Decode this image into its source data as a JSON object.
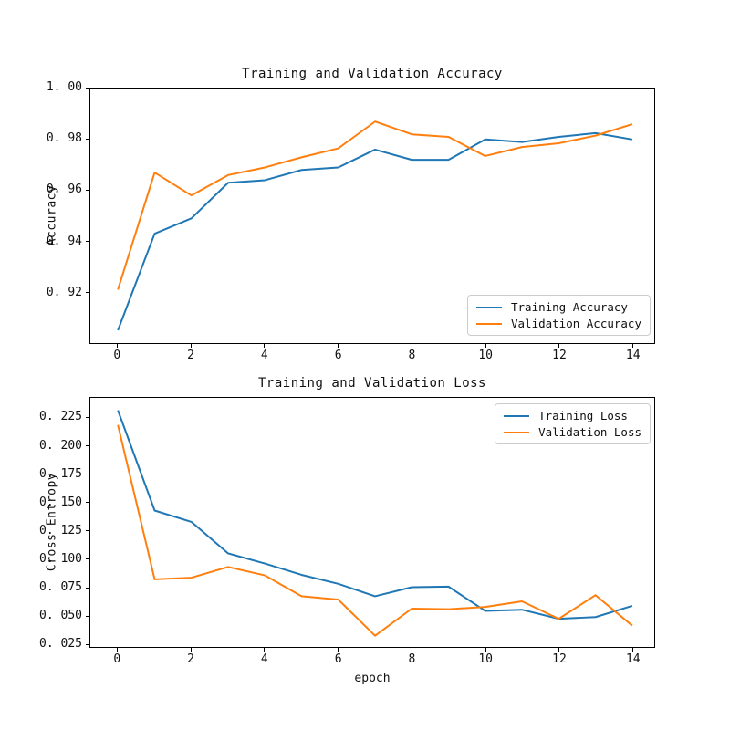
{
  "figure": {
    "background": "#ffffff",
    "text_color": "#111111",
    "accent_blue": "#1f77b4",
    "accent_orange": "#ff7f0e"
  },
  "chart_data": [
    {
      "type": "line",
      "title": "Training and Validation Accuracy",
      "xlabel": "",
      "ylabel": "Accuracy",
      "grid": false,
      "legend_position": "lower right",
      "x": [
        0,
        1,
        2,
        3,
        4,
        5,
        6,
        7,
        8,
        9,
        10,
        11,
        12,
        13,
        14
      ],
      "xlim": [
        -0.75,
        14.6
      ],
      "ylim": [
        0.9,
        1.0
      ],
      "xtick_values": [
        0,
        2,
        4,
        6,
        8,
        10,
        12,
        14
      ],
      "xtick_labels": [
        "0",
        "2",
        "4",
        "6",
        "8",
        "10",
        "12",
        "14"
      ],
      "ytick_values": [
        1.0,
        0.98,
        0.96,
        0.94,
        0.92
      ],
      "ytick_labels": [
        "1. 00",
        "0. 98",
        "0. 96",
        "0. 94",
        "0. 92"
      ],
      "series": [
        {
          "name": "Training Accuracy",
          "color": "#1f77b4",
          "values": [
            0.905,
            0.943,
            0.949,
            0.963,
            0.964,
            0.968,
            0.969,
            0.976,
            0.972,
            0.972,
            0.98,
            0.979,
            0.981,
            0.9825,
            0.98
          ]
        },
        {
          "name": "Validation Accuracy",
          "color": "#ff7f0e",
          "values": [
            0.921,
            0.967,
            0.958,
            0.966,
            0.969,
            0.973,
            0.9765,
            0.987,
            0.982,
            0.981,
            0.9735,
            0.977,
            0.9785,
            0.9815,
            0.986
          ]
        }
      ]
    },
    {
      "type": "line",
      "title": "Training and Validation Loss",
      "xlabel": "epoch",
      "ylabel": "Cross Entropy",
      "grid": false,
      "legend_position": "upper right",
      "x": [
        0,
        1,
        2,
        3,
        4,
        5,
        6,
        7,
        8,
        9,
        10,
        11,
        12,
        13,
        14
      ],
      "xlim": [
        -0.75,
        14.6
      ],
      "ylim": [
        0.022,
        0.243
      ],
      "xtick_values": [
        0,
        2,
        4,
        6,
        8,
        10,
        12,
        14
      ],
      "xtick_labels": [
        "0",
        "2",
        "4",
        "6",
        "8",
        "10",
        "12",
        "14"
      ],
      "ytick_values": [
        0.225,
        0.2,
        0.175,
        0.15,
        0.125,
        0.1,
        0.075,
        0.05,
        0.025
      ],
      "ytick_labels": [
        "0. 225",
        "0. 200",
        "0. 175",
        "0. 150",
        "0. 125",
        "0. 100",
        "0. 075",
        "0. 050",
        "0. 025"
      ],
      "series": [
        {
          "name": "Training Loss",
          "color": "#1f77b4",
          "values": [
            0.232,
            0.143,
            0.133,
            0.105,
            0.096,
            0.086,
            0.078,
            0.067,
            0.075,
            0.0755,
            0.054,
            0.055,
            0.047,
            0.0485,
            0.0585
          ]
        },
        {
          "name": "Validation Loss",
          "color": "#ff7f0e",
          "values": [
            0.219,
            0.082,
            0.0835,
            0.093,
            0.0855,
            0.067,
            0.064,
            0.032,
            0.056,
            0.0555,
            0.0575,
            0.0625,
            0.047,
            0.068,
            0.041
          ]
        }
      ]
    }
  ]
}
